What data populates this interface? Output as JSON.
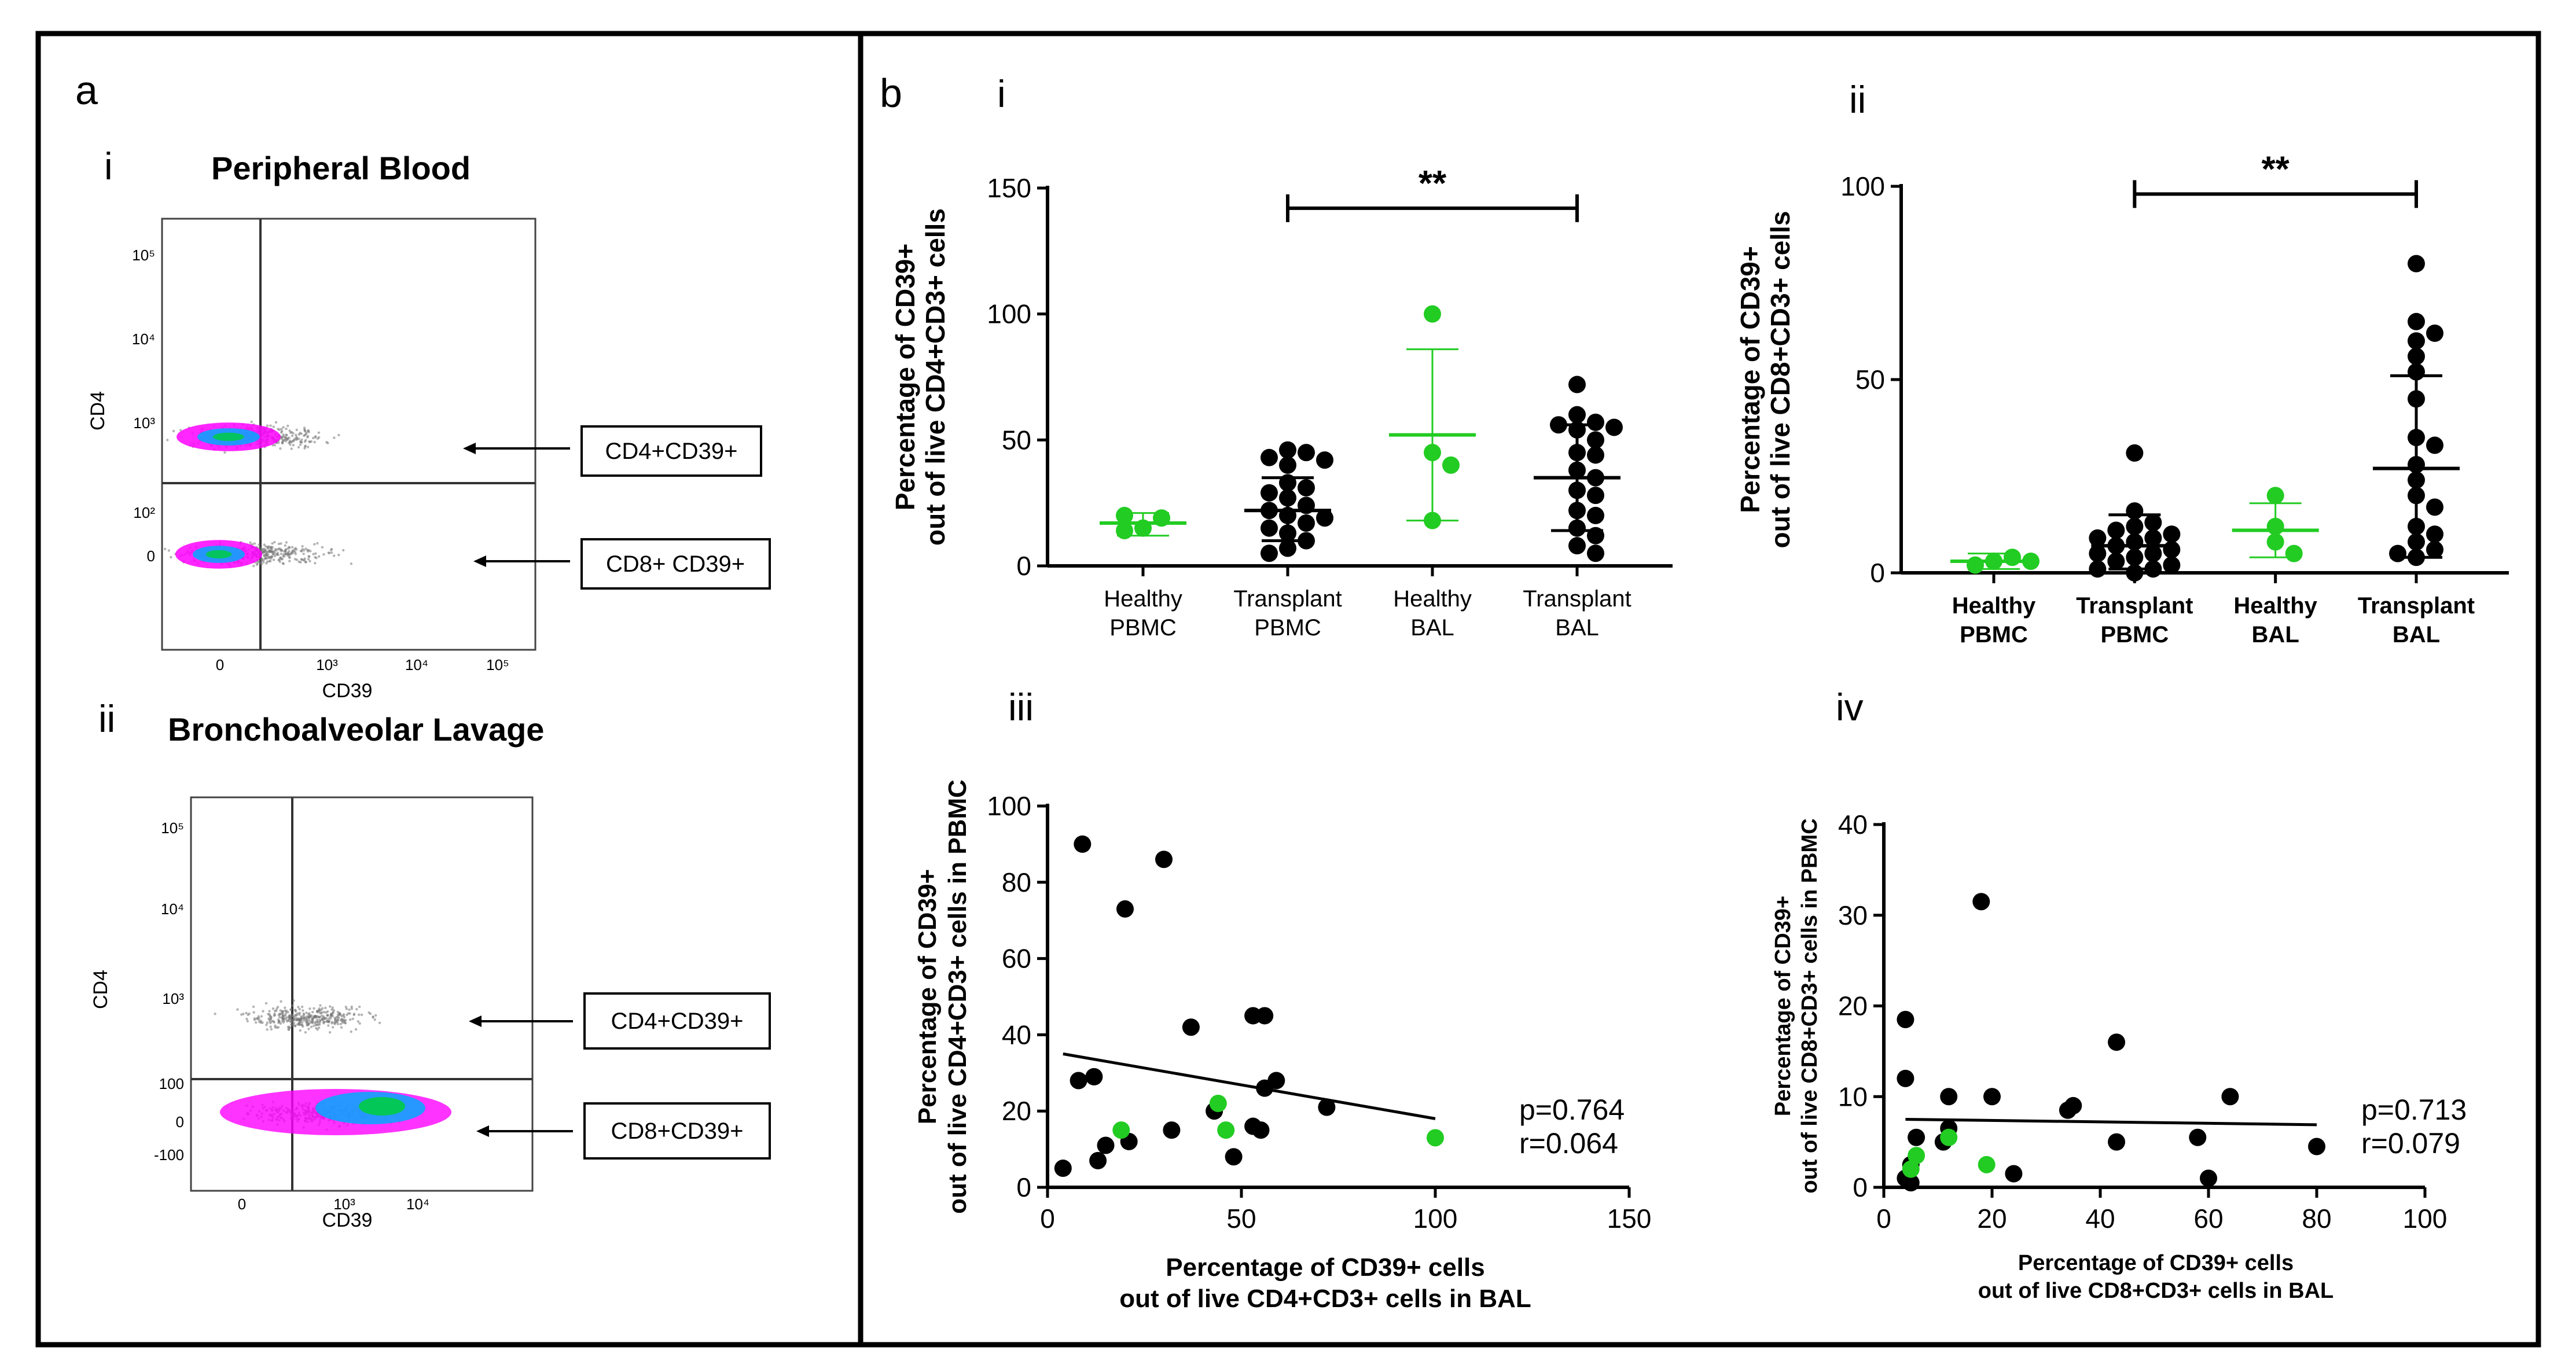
{
  "panel_a": {
    "letter": "a",
    "sub_i": "i",
    "title_i": "Peripheral Blood",
    "sub_ii": "ii",
    "title_ii": "Bronchoalveolar Lavage",
    "flow_i": {
      "ylabel": "CD4",
      "xlabel": "CD39",
      "y_ticks": [
        "10⁵",
        "10⁴",
        "10³",
        "10²",
        "0"
      ],
      "x_ticks": [
        "0",
        "10³",
        "10⁴",
        "10⁵"
      ],
      "label_top": "CD4+CD39+",
      "label_bottom": "CD8+ CD39+"
    },
    "flow_ii": {
      "ylabel": "CD4",
      "xlabel": "CD39",
      "y_ticks": [
        "10⁵",
        "10⁴",
        "10³",
        "100",
        "0",
        "-100"
      ],
      "x_ticks": [
        "0",
        "10³",
        "10⁴"
      ],
      "label_top": "CD4+CD39+",
      "label_bottom": "CD8+CD39+"
    }
  },
  "panel_b": {
    "letter": "b"
  },
  "colors": {
    "healthy": "#22cc22",
    "transplant": "#000000",
    "density_low": "#ff00ff",
    "density_mid": "#00aaff",
    "density_high": "#00cc44"
  },
  "chart_data": [
    {
      "id": "bi",
      "type": "scatter",
      "numeral": "i",
      "ylabel_lines": [
        "Percentage of CD39+",
        "out of live CD4+CD3+ cells"
      ],
      "ylim": [
        0,
        150
      ],
      "y_ticks": [
        0,
        50,
        100,
        150
      ],
      "categories": [
        {
          "lines": [
            "Healthy",
            "PBMC"
          ],
          "group": "healthy",
          "values": [
            15,
            19,
            14,
            20
          ],
          "mean": 17,
          "sd_low": 12,
          "sd_high": 21
        },
        {
          "lines": [
            "Transplant",
            "PBMC"
          ],
          "group": "transplant",
          "values": [
            46,
            45,
            43,
            42,
            40,
            33,
            31,
            29,
            27,
            24,
            22,
            20,
            19,
            17,
            15,
            13,
            10,
            7,
            5
          ],
          "mean": 22,
          "sd_low": 10,
          "sd_high": 35
        },
        {
          "lines": [
            "Healthy",
            "BAL"
          ],
          "group": "healthy",
          "values": [
            100,
            45,
            40,
            18
          ],
          "mean": 52,
          "sd_low": 18,
          "sd_high": 86
        },
        {
          "lines": [
            "Transplant",
            "BAL"
          ],
          "group": "transplant",
          "values": [
            72,
            60,
            57,
            56,
            55,
            54,
            50,
            45,
            44,
            38,
            35,
            30,
            28,
            22,
            20,
            15,
            12,
            8,
            5
          ],
          "mean": 35,
          "sd_low": 14,
          "sd_high": 56
        }
      ],
      "significance": {
        "from": 1,
        "to": 3,
        "label": "**",
        "y": 142
      }
    },
    {
      "id": "bii",
      "type": "scatter",
      "numeral": "ii",
      "ylabel_lines": [
        "Percentage of CD39+",
        "out of live CD8+CD3+ cells"
      ],
      "ylim": [
        0,
        100
      ],
      "y_ticks": [
        0,
        50,
        100
      ],
      "categories": [
        {
          "lines": [
            "Healthy",
            "PBMC"
          ],
          "group": "healthy",
          "values": [
            3,
            4,
            2,
            3
          ],
          "mean": 3,
          "sd_low": 1,
          "sd_high": 5
        },
        {
          "lines": [
            "Transplant",
            "PBMC"
          ],
          "group": "transplant",
          "values": [
            31,
            16,
            13,
            12,
            11,
            10,
            9,
            9,
            8,
            7,
            6,
            5,
            5,
            4,
            3,
            2,
            1,
            1,
            0
          ],
          "mean": 7,
          "sd_low": 1,
          "sd_high": 15
        },
        {
          "lines": [
            "Healthy",
            "BAL"
          ],
          "group": "healthy",
          "values": [
            20,
            12,
            8,
            5
          ],
          "mean": 11,
          "sd_low": 4,
          "sd_high": 18
        },
        {
          "lines": [
            "Transplant",
            "BAL"
          ],
          "group": "transplant",
          "values": [
            80,
            65,
            62,
            60,
            56,
            52,
            45,
            35,
            33,
            28,
            24,
            20,
            17,
            12,
            10,
            8,
            6,
            5,
            4
          ],
          "mean": 27,
          "sd_low": 4,
          "sd_high": 51
        }
      ],
      "significance": {
        "from": 1,
        "to": 3,
        "label": "**",
        "y": 98
      }
    },
    {
      "id": "biii",
      "type": "scatter",
      "numeral": "iii",
      "xlabel_lines": [
        "Percentage of CD39+ cells",
        "out of live CD4+CD3+ cells in BAL"
      ],
      "ylabel_lines": [
        "Percentage of CD39+",
        "out of live CD4+CD3+ cells in PBMC"
      ],
      "xlim": [
        0,
        150
      ],
      "ylim": [
        0,
        100
      ],
      "x_ticks": [
        0,
        50,
        100,
        150
      ],
      "y_ticks": [
        0,
        20,
        40,
        60,
        80,
        100
      ],
      "transplant_points": [
        [
          4,
          5
        ],
        [
          8,
          28
        ],
        [
          9,
          90
        ],
        [
          12,
          29
        ],
        [
          13,
          7
        ],
        [
          15,
          11
        ],
        [
          20,
          73
        ],
        [
          21,
          12
        ],
        [
          30,
          86
        ],
        [
          32,
          15
        ],
        [
          37,
          42
        ],
        [
          43,
          20
        ],
        [
          48,
          8
        ],
        [
          53,
          45
        ],
        [
          53,
          16
        ],
        [
          55,
          15
        ],
        [
          56,
          45
        ],
        [
          56,
          26
        ],
        [
          59,
          28
        ],
        [
          72,
          21
        ]
      ],
      "healthy_points": [
        [
          19,
          15
        ],
        [
          44,
          22
        ],
        [
          46,
          15
        ],
        [
          100,
          13
        ]
      ],
      "regression": {
        "x0": 4,
        "y0": 35,
        "x1": 100,
        "y1": 18
      },
      "stats": [
        "p=0.764",
        "r=0.064"
      ]
    },
    {
      "id": "biv",
      "type": "scatter",
      "numeral": "iv",
      "xlabel_lines": [
        "Percentage of CD39+ cells",
        "out of live CD8+CD3+ cells in BAL"
      ],
      "ylabel_lines": [
        "Percentage of CD39+",
        "out of live CD8+CD3+ cells in PBMC"
      ],
      "xlim": [
        0,
        100
      ],
      "ylim": [
        0,
        40
      ],
      "x_ticks": [
        0,
        20,
        40,
        60,
        80,
        100
      ],
      "y_ticks": [
        0,
        10,
        20,
        30,
        40
      ],
      "transplant_points": [
        [
          4,
          18.5
        ],
        [
          4,
          12
        ],
        [
          4,
          1
        ],
        [
          5,
          0.5
        ],
        [
          5,
          2.5
        ],
        [
          6,
          5.5
        ],
        [
          11,
          5
        ],
        [
          12,
          6.5
        ],
        [
          12,
          10
        ],
        [
          18,
          31.5
        ],
        [
          20,
          10
        ],
        [
          24,
          1.5
        ],
        [
          34,
          8.5
        ],
        [
          35,
          9
        ],
        [
          43,
          16
        ],
        [
          43,
          5
        ],
        [
          58,
          5.5
        ],
        [
          60,
          1
        ],
        [
          64,
          10
        ],
        [
          80,
          4.5
        ]
      ],
      "healthy_points": [
        [
          5,
          2
        ],
        [
          6,
          3.5
        ],
        [
          12,
          5.5
        ],
        [
          19,
          2.5
        ]
      ],
      "regression": {
        "x0": 4,
        "y0": 7.5,
        "x1": 80,
        "y1": 6.9
      },
      "stats": [
        "p=0.713",
        "r=0.079"
      ]
    }
  ]
}
